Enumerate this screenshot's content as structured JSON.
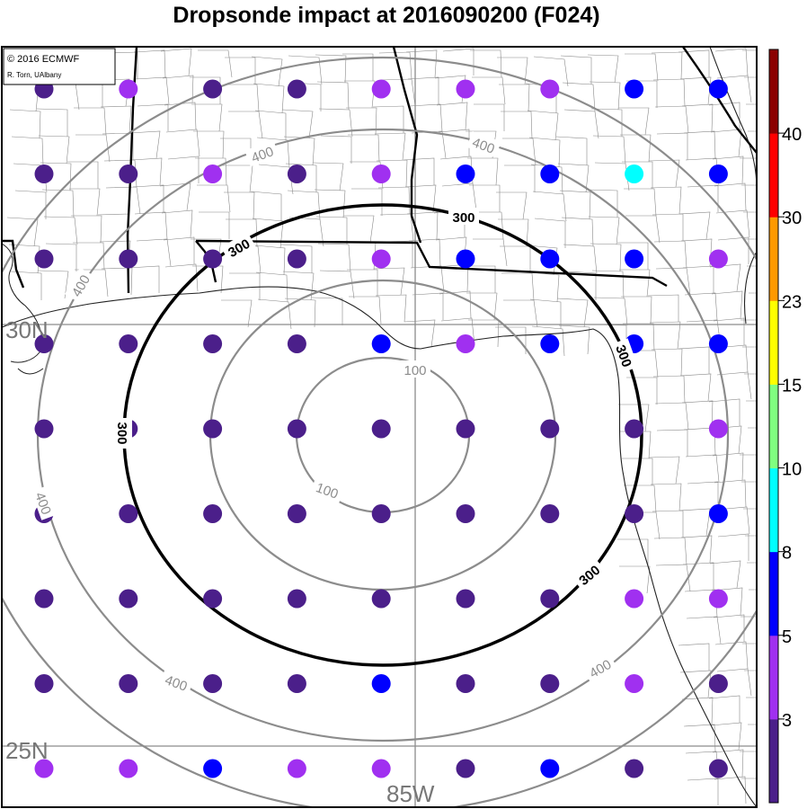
{
  "title": "Dropsonde impact at 2016090200 (F024)",
  "credit": {
    "line1": "© 2016 ECMWF",
    "line2": "R. Torn, UAlbany"
  },
  "grid_labels": {
    "lat_north": "30N",
    "lat_south": "25N",
    "lon": "85W"
  },
  "distance_rings": {
    "unit": "",
    "rings": [
      {
        "value": 100,
        "labels": [
          "100",
          "100"
        ]
      },
      {
        "value": 200,
        "labels": []
      },
      {
        "value": 300,
        "labels": [
          "300",
          "300",
          "300",
          "300",
          "300"
        ],
        "highlighted": true
      },
      {
        "value": 400,
        "labels": [
          "400",
          "400",
          "400",
          "400",
          "400",
          "400"
        ]
      },
      {
        "value": 500,
        "labels": []
      }
    ]
  },
  "colorbar": {
    "tick_labels": [
      "3",
      "5",
      "8",
      "10",
      "15",
      "23",
      "30",
      "40"
    ],
    "bins": [
      {
        "color": "#4b1f8a"
      },
      {
        "color": "#a030f0"
      },
      {
        "color": "#0000ff"
      },
      {
        "color": "#00ffff"
      },
      {
        "color": "#80ff80"
      },
      {
        "color": "#ffff00"
      },
      {
        "color": "#ff9900"
      },
      {
        "color": "#ff0000"
      },
      {
        "color": "#8b0000"
      }
    ]
  },
  "chart_data": {
    "type": "scatter",
    "title": "Dropsonde impact at 2016090200 (F024)",
    "color_scale_ticks": [
      3,
      5,
      8,
      10,
      15,
      23,
      30,
      40
    ],
    "colors": {
      "dark_purple": "#4b1f8a",
      "purple": "#a030f0",
      "blue": "#0000ff",
      "cyan": "#00ffff"
    },
    "grid_columns": 9,
    "grid_rows": 9,
    "points_by_row": [
      [
        "dark_purple",
        "purple",
        "dark_purple",
        "dark_purple",
        "purple",
        "purple",
        "purple",
        "blue",
        "blue"
      ],
      [
        "dark_purple",
        "dark_purple",
        "purple",
        "dark_purple",
        "purple",
        "blue",
        "blue",
        "cyan",
        "blue"
      ],
      [
        "dark_purple",
        "dark_purple",
        "dark_purple",
        "dark_purple",
        "purple",
        "blue",
        "blue",
        "blue",
        "purple"
      ],
      [
        "dark_purple",
        "dark_purple",
        "dark_purple",
        "dark_purple",
        "blue",
        "purple",
        "blue",
        "blue",
        "blue"
      ],
      [
        "dark_purple",
        "dark_purple",
        "dark_purple",
        "dark_purple",
        "dark_purple",
        "dark_purple",
        "dark_purple",
        "dark_purple",
        "purple"
      ],
      [
        "dark_purple",
        "dark_purple",
        "dark_purple",
        "dark_purple",
        "dark_purple",
        "dark_purple",
        "dark_purple",
        "dark_purple",
        "blue"
      ],
      [
        "dark_purple",
        "dark_purple",
        "dark_purple",
        "dark_purple",
        "dark_purple",
        "dark_purple",
        "dark_purple",
        "purple",
        "purple"
      ],
      [
        "dark_purple",
        "dark_purple",
        "dark_purple",
        "dark_purple",
        "blue",
        "dark_purple",
        "dark_purple",
        "purple",
        "dark_purple"
      ],
      [
        "purple",
        "purple",
        "blue",
        "purple",
        "purple",
        "dark_purple",
        "blue",
        "dark_purple",
        "dark_purple"
      ]
    ]
  }
}
